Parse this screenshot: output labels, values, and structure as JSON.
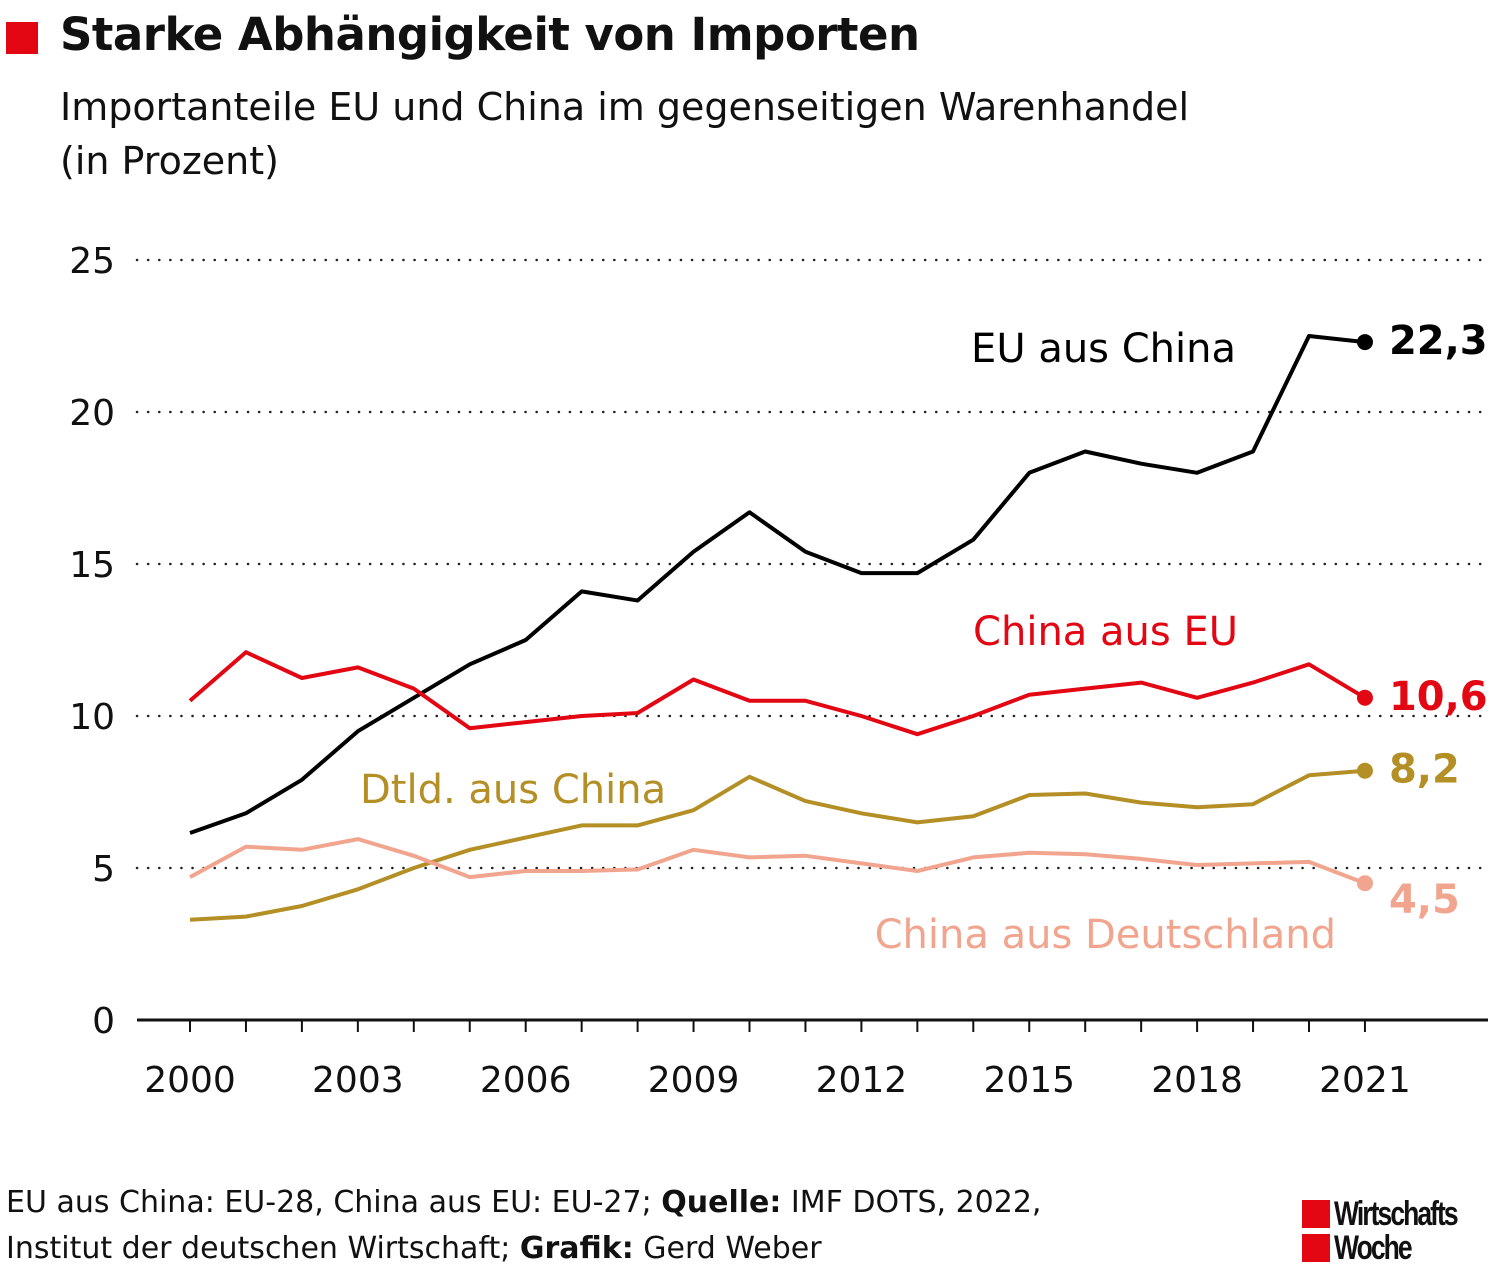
{
  "header": {
    "title": "Starke Abhängigkeit von Importen",
    "subtitle_line1": "Importanteile EU und China im gegenseitigen Warenhandel",
    "subtitle_line2": "(in Prozent)",
    "accent_color": "#e30613"
  },
  "chart_data": {
    "type": "line",
    "title": "Starke Abhängigkeit von Importen",
    "subtitle": "Importanteile EU und China im gegenseitigen Warenhandel (in Prozent)",
    "xlabel": "",
    "ylabel": "",
    "ylim": [
      0,
      25
    ],
    "xlim": [
      2000,
      2021
    ],
    "grid": true,
    "y_ticks": [
      "0",
      "5",
      "10",
      "15",
      "20",
      "25"
    ],
    "x_ticks": [
      "2000",
      "2003",
      "2006",
      "2009",
      "2012",
      "2015",
      "2018",
      "2021"
    ],
    "x": [
      2000,
      2001,
      2002,
      2003,
      2004,
      2005,
      2006,
      2007,
      2008,
      2009,
      2010,
      2011,
      2012,
      2013,
      2014,
      2015,
      2016,
      2017,
      2018,
      2019,
      2020,
      2021
    ],
    "series": [
      {
        "name": "EU aus China",
        "color": "#000000",
        "end_label": "22,3",
        "values": [
          6.15,
          6.8,
          7.9,
          9.5,
          10.6,
          11.7,
          12.5,
          14.1,
          13.8,
          15.4,
          16.7,
          15.4,
          14.7,
          14.7,
          15.8,
          18.0,
          18.7,
          18.3,
          18.0,
          18.7,
          22.5,
          22.3
        ]
      },
      {
        "name": "China aus EU",
        "color": "#e30613",
        "end_label": "10,6",
        "values": [
          10.5,
          12.1,
          11.25,
          11.6,
          10.9,
          9.6,
          9.8,
          10.0,
          10.1,
          11.2,
          10.5,
          10.5,
          10.0,
          9.4,
          10.0,
          10.7,
          10.9,
          11.1,
          10.6,
          11.1,
          11.7,
          10.6
        ]
      },
      {
        "name": "Dtld. aus China",
        "color": "#b38f26",
        "end_label": "8,2",
        "values": [
          3.3,
          3.4,
          3.75,
          4.3,
          5.0,
          5.6,
          6.0,
          6.4,
          6.4,
          6.9,
          8.0,
          7.2,
          6.8,
          6.5,
          6.7,
          7.4,
          7.45,
          7.15,
          7.0,
          7.1,
          8.05,
          8.2
        ]
      },
      {
        "name": "China aus Deutschland",
        "color": "#f2a58e",
        "end_label": "4,5",
        "values": [
          4.7,
          5.7,
          5.6,
          5.95,
          5.4,
          4.7,
          4.9,
          4.9,
          4.95,
          5.6,
          5.35,
          5.4,
          5.15,
          4.9,
          5.35,
          5.5,
          5.45,
          5.3,
          5.1,
          5.15,
          5.2,
          4.5
        ]
      }
    ]
  },
  "footer": {
    "note_part1": "EU aus China: EU-28, China aus EU: EU-27; ",
    "source_label": "Quelle:",
    "source_text": " IMF DOTS, 2022,",
    "note_line2": "Institut der deutschen Wirtschaft; ",
    "graphic_label": "Grafik:",
    "graphic_text": " Gerd Weber"
  },
  "logo": {
    "line1": "Wirtschafts",
    "line2": "Woche"
  }
}
